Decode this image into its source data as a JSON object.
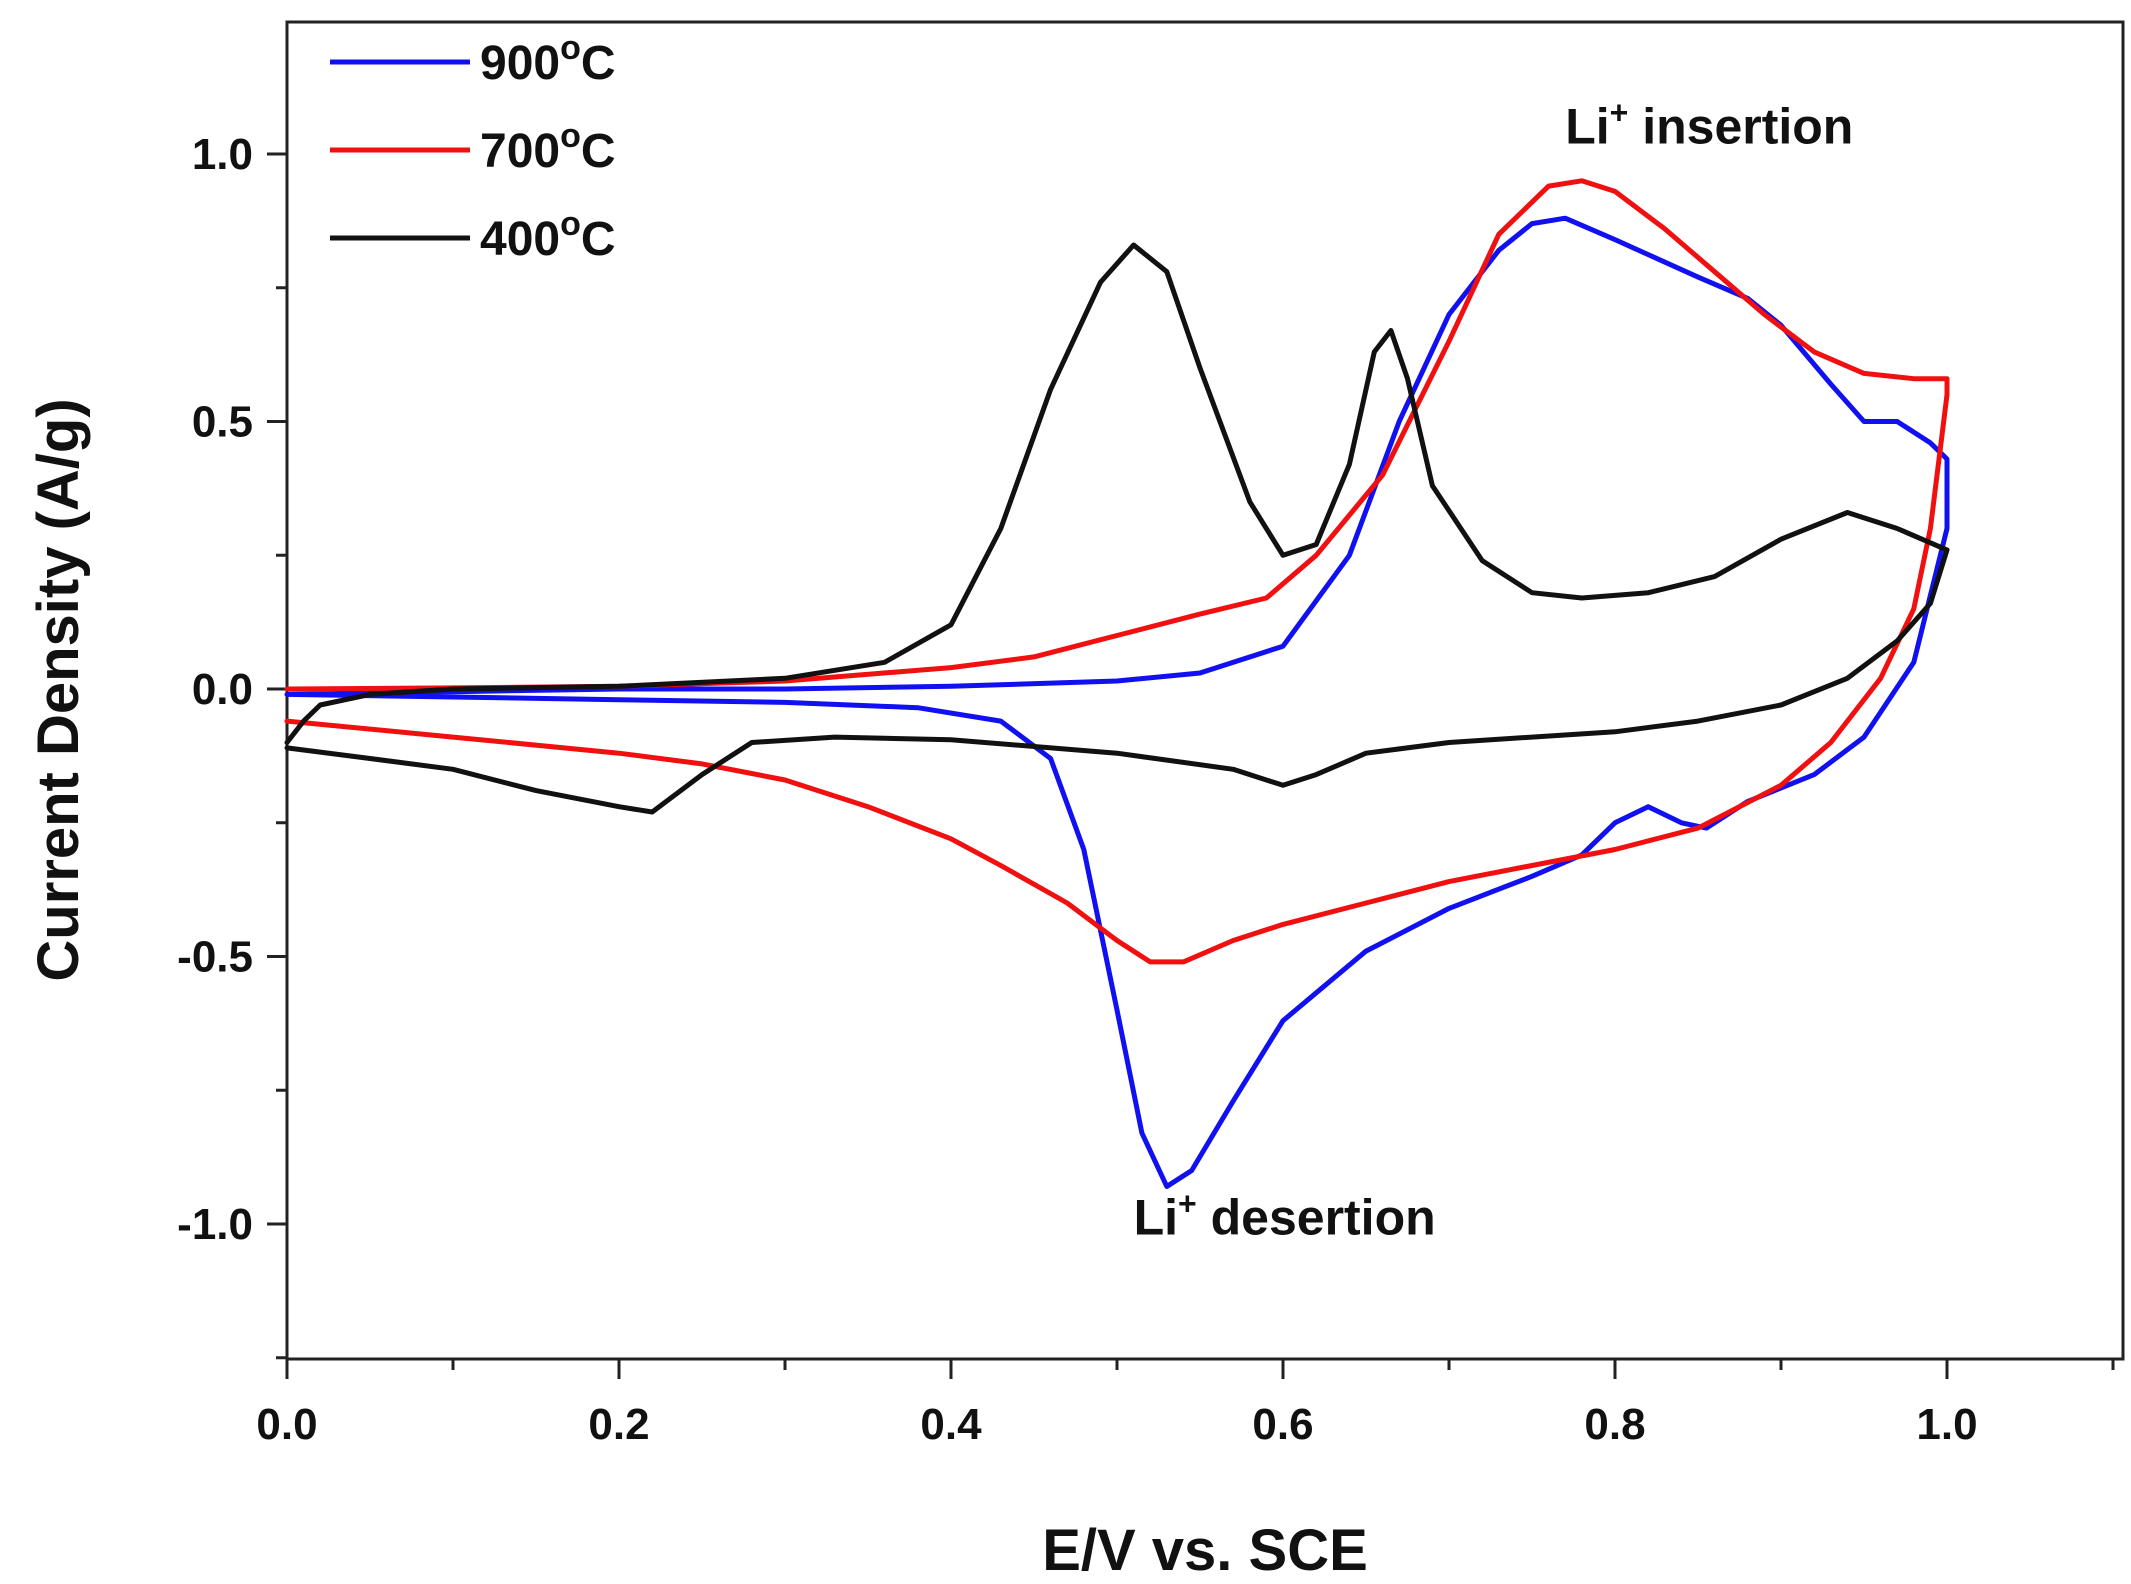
{
  "chart_data": {
    "type": "line",
    "xlabel": "E/V vs. SCE",
    "ylabel": "Current Density (A/g)",
    "xlim": [
      0.0,
      1.1
    ],
    "ylim": [
      -1.25,
      1.25
    ],
    "x_ticks": [
      "0.0",
      "0.2",
      "0.4",
      "0.6",
      "0.8",
      "1.0"
    ],
    "y_ticks": [
      "-1.0",
      "-0.5",
      "0.0",
      "0.5",
      "1.0"
    ],
    "legend_position": "top-left",
    "grid": false,
    "annotations": [
      {
        "text": "Li",
        "sup": "+",
        "rest": " insertion",
        "x": 0.77,
        "y": 1.02
      },
      {
        "text": "Li",
        "sup": "+",
        "rest": " desertion",
        "x": 0.51,
        "y": -1.02
      }
    ],
    "series": [
      {
        "name": "900",
        "unit": "C",
        "color": "#1010f0",
        "points": [
          [
            0.0,
            -0.01
          ],
          [
            0.1,
            -0.015
          ],
          [
            0.2,
            -0.02
          ],
          [
            0.3,
            -0.025
          ],
          [
            0.38,
            -0.035
          ],
          [
            0.43,
            -0.06
          ],
          [
            0.46,
            -0.13
          ],
          [
            0.48,
            -0.3
          ],
          [
            0.5,
            -0.6
          ],
          [
            0.515,
            -0.83
          ],
          [
            0.53,
            -0.93
          ],
          [
            0.545,
            -0.9
          ],
          [
            0.57,
            -0.77
          ],
          [
            0.6,
            -0.62
          ],
          [
            0.65,
            -0.49
          ],
          [
            0.7,
            -0.41
          ],
          [
            0.75,
            -0.35
          ],
          [
            0.78,
            -0.31
          ],
          [
            0.8,
            -0.25
          ],
          [
            0.82,
            -0.22
          ],
          [
            0.84,
            -0.25
          ],
          [
            0.855,
            -0.26
          ],
          [
            0.88,
            -0.21
          ],
          [
            0.92,
            -0.16
          ],
          [
            0.95,
            -0.09
          ],
          [
            0.98,
            0.05
          ],
          [
            1.0,
            0.3
          ],
          [
            1.0,
            0.43
          ],
          [
            0.99,
            0.46
          ],
          [
            0.97,
            0.5
          ],
          [
            0.95,
            0.5
          ],
          [
            0.93,
            0.57
          ],
          [
            0.9,
            0.68
          ],
          [
            0.88,
            0.73
          ],
          [
            0.85,
            0.77
          ],
          [
            0.8,
            0.84
          ],
          [
            0.77,
            0.88
          ],
          [
            0.75,
            0.87
          ],
          [
            0.73,
            0.82
          ],
          [
            0.7,
            0.7
          ],
          [
            0.67,
            0.5
          ],
          [
            0.64,
            0.25
          ],
          [
            0.6,
            0.08
          ],
          [
            0.55,
            0.03
          ],
          [
            0.5,
            0.015
          ],
          [
            0.4,
            0.005
          ],
          [
            0.3,
            0.0
          ],
          [
            0.2,
            0.0
          ],
          [
            0.1,
            -0.005
          ],
          [
            0.0,
            -0.01
          ]
        ]
      },
      {
        "name": "700",
        "unit": "C",
        "color": "#f01010",
        "points": [
          [
            0.0,
            0.0
          ],
          [
            0.1,
            0.002
          ],
          [
            0.2,
            0.005
          ],
          [
            0.3,
            0.015
          ],
          [
            0.4,
            0.04
          ],
          [
            0.45,
            0.06
          ],
          [
            0.5,
            0.1
          ],
          [
            0.55,
            0.14
          ],
          [
            0.59,
            0.17
          ],
          [
            0.62,
            0.25
          ],
          [
            0.66,
            0.4
          ],
          [
            0.7,
            0.65
          ],
          [
            0.73,
            0.85
          ],
          [
            0.76,
            0.94
          ],
          [
            0.78,
            0.95
          ],
          [
            0.8,
            0.93
          ],
          [
            0.83,
            0.86
          ],
          [
            0.86,
            0.78
          ],
          [
            0.89,
            0.7
          ],
          [
            0.92,
            0.63
          ],
          [
            0.95,
            0.59
          ],
          [
            0.98,
            0.58
          ],
          [
            1.0,
            0.58
          ],
          [
            1.0,
            0.55
          ],
          [
            0.99,
            0.3
          ],
          [
            0.98,
            0.15
          ],
          [
            0.96,
            0.02
          ],
          [
            0.93,
            -0.1
          ],
          [
            0.9,
            -0.18
          ],
          [
            0.85,
            -0.26
          ],
          [
            0.8,
            -0.3
          ],
          [
            0.75,
            -0.33
          ],
          [
            0.7,
            -0.36
          ],
          [
            0.65,
            -0.4
          ],
          [
            0.6,
            -0.44
          ],
          [
            0.57,
            -0.47
          ],
          [
            0.54,
            -0.51
          ],
          [
            0.52,
            -0.51
          ],
          [
            0.5,
            -0.47
          ],
          [
            0.47,
            -0.4
          ],
          [
            0.43,
            -0.33
          ],
          [
            0.4,
            -0.28
          ],
          [
            0.35,
            -0.22
          ],
          [
            0.3,
            -0.17
          ],
          [
            0.25,
            -0.14
          ],
          [
            0.2,
            -0.12
          ],
          [
            0.1,
            -0.09
          ],
          [
            0.0,
            -0.06
          ]
        ]
      },
      {
        "name": "400",
        "unit": "C",
        "color": "#111111",
        "points": [
          [
            0.0,
            -0.1
          ],
          [
            0.01,
            -0.06
          ],
          [
            0.02,
            -0.03
          ],
          [
            0.05,
            -0.01
          ],
          [
            0.1,
            0.0
          ],
          [
            0.2,
            0.005
          ],
          [
            0.3,
            0.02
          ],
          [
            0.36,
            0.05
          ],
          [
            0.4,
            0.12
          ],
          [
            0.43,
            0.3
          ],
          [
            0.46,
            0.56
          ],
          [
            0.49,
            0.76
          ],
          [
            0.51,
            0.83
          ],
          [
            0.53,
            0.78
          ],
          [
            0.55,
            0.6
          ],
          [
            0.58,
            0.35
          ],
          [
            0.6,
            0.25
          ],
          [
            0.62,
            0.27
          ],
          [
            0.64,
            0.42
          ],
          [
            0.655,
            0.63
          ],
          [
            0.665,
            0.67
          ],
          [
            0.675,
            0.58
          ],
          [
            0.69,
            0.38
          ],
          [
            0.72,
            0.24
          ],
          [
            0.75,
            0.18
          ],
          [
            0.78,
            0.17
          ],
          [
            0.82,
            0.18
          ],
          [
            0.86,
            0.21
          ],
          [
            0.9,
            0.28
          ],
          [
            0.94,
            0.33
          ],
          [
            0.97,
            0.3
          ],
          [
            1.0,
            0.26
          ],
          [
            0.99,
            0.16
          ],
          [
            0.97,
            0.09
          ],
          [
            0.94,
            0.02
          ],
          [
            0.9,
            -0.03
          ],
          [
            0.85,
            -0.06
          ],
          [
            0.8,
            -0.08
          ],
          [
            0.75,
            -0.09
          ],
          [
            0.7,
            -0.1
          ],
          [
            0.65,
            -0.12
          ],
          [
            0.62,
            -0.16
          ],
          [
            0.6,
            -0.18
          ],
          [
            0.57,
            -0.15
          ],
          [
            0.5,
            -0.12
          ],
          [
            0.4,
            -0.095
          ],
          [
            0.33,
            -0.09
          ],
          [
            0.28,
            -0.1
          ],
          [
            0.25,
            -0.16
          ],
          [
            0.22,
            -0.23
          ],
          [
            0.2,
            -0.22
          ],
          [
            0.15,
            -0.19
          ],
          [
            0.1,
            -0.15
          ],
          [
            0.05,
            -0.13
          ],
          [
            0.0,
            -0.11
          ]
        ]
      }
    ]
  }
}
